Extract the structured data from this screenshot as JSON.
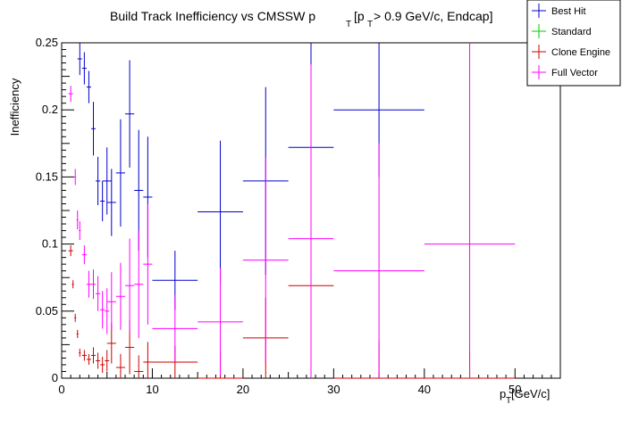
{
  "chart_data": {
    "type": "scatter",
    "title_main": "Build Track Inefficiency vs CMSSW p",
    "title_sub": "T",
    "title_bracket": "[p",
    "title_bracket_sub": "T",
    "title_tail": " > 0.9 GeV/c, Endcap]",
    "ylabel": "Inefficiency",
    "xlabel_main": "p",
    "xlabel_sub": "T",
    "xlabel_unit": " [GeV/c]",
    "xlim": [
      0,
      55
    ],
    "ylim": [
      0,
      0.25
    ],
    "x_ticks": [
      "0",
      "10",
      "20",
      "30",
      "40",
      "50"
    ],
    "y_ticks": [
      "0",
      "0.05",
      "0.1",
      "0.15",
      "0.2",
      "0.25"
    ],
    "x_tick_values": [
      0,
      10,
      20,
      30,
      40,
      50
    ],
    "y_tick_values": [
      0,
      0.05,
      0.1,
      0.15,
      0.2,
      0.25
    ],
    "legend": {
      "placement": "top-right",
      "entries": [
        {
          "label": "Best Hit",
          "color": "#0000cc"
        },
        {
          "label": "Standard",
          "color": "#00cc00"
        },
        {
          "label": "Clone Engine",
          "color": "#cc0000"
        },
        {
          "label": "Full Vector",
          "color": "#ff00ff"
        }
      ]
    },
    "series": [
      {
        "name": "Best Hit",
        "color": "#0000cc",
        "points": [
          {
            "x": 2.0,
            "xerr": 0.25,
            "y": 0.238,
            "yerr": 0.012
          },
          {
            "x": 2.5,
            "xerr": 0.25,
            "y": 0.231,
            "yerr": 0.012
          },
          {
            "x": 3.0,
            "xerr": 0.25,
            "y": 0.217,
            "yerr": 0.012
          },
          {
            "x": 3.5,
            "xerr": 0.25,
            "y": 0.186,
            "yerr": 0.02
          },
          {
            "x": 4.0,
            "xerr": 0.25,
            "y": 0.147,
            "yerr": 0.018
          },
          {
            "x": 4.5,
            "xerr": 0.25,
            "y": 0.132,
            "yerr": 0.015
          },
          {
            "x": 5.0,
            "xerr": 0.5,
            "y": 0.147,
            "yerr": 0.025
          },
          {
            "x": 5.5,
            "xerr": 0.5,
            "y": 0.131,
            "yerr": 0.025
          },
          {
            "x": 6.5,
            "xerr": 0.5,
            "y": 0.153,
            "yerr": 0.04
          },
          {
            "x": 7.5,
            "xerr": 0.5,
            "y": 0.197,
            "yerr": 0.04
          },
          {
            "x": 8.5,
            "xerr": 0.5,
            "y": 0.14,
            "yerr": 0.045
          },
          {
            "x": 9.5,
            "xerr": 0.5,
            "y": 0.135,
            "yerr": 0.045
          },
          {
            "x": 12.5,
            "xerr": 2.5,
            "y": 0.073,
            "yerr": 0.022
          },
          {
            "x": 17.5,
            "xerr": 2.5,
            "y": 0.124,
            "yerr": 0.053
          },
          {
            "x": 22.5,
            "xerr": 2.5,
            "y": 0.147,
            "yerr": 0.07
          },
          {
            "x": 27.5,
            "xerr": 2.5,
            "y": 0.172,
            "yerr": 0.078
          },
          {
            "x": 35.0,
            "xerr": 5.0,
            "y": 0.2,
            "yerr": 0.05
          }
        ]
      },
      {
        "name": "Clone Engine",
        "color": "#cc0000",
        "points": [
          {
            "x": 1.0,
            "xerr": 0.25,
            "y": 0.095,
            "yerr": 0.004
          },
          {
            "x": 1.25,
            "xerr": 0.1,
            "y": 0.07,
            "yerr": 0.003
          },
          {
            "x": 1.5,
            "xerr": 0.1,
            "y": 0.045,
            "yerr": 0.003
          },
          {
            "x": 1.75,
            "xerr": 0.1,
            "y": 0.033,
            "yerr": 0.003
          },
          {
            "x": 2.0,
            "xerr": 0.1,
            "y": 0.019,
            "yerr": 0.003
          },
          {
            "x": 2.5,
            "xerr": 0.25,
            "y": 0.017,
            "yerr": 0.004
          },
          {
            "x": 3.0,
            "xerr": 0.25,
            "y": 0.014,
            "yerr": 0.004
          },
          {
            "x": 3.5,
            "xerr": 0.25,
            "y": 0.017,
            "yerr": 0.006
          },
          {
            "x": 4.0,
            "xerr": 0.25,
            "y": 0.013,
            "yerr": 0.006
          },
          {
            "x": 4.5,
            "xerr": 0.25,
            "y": 0.01,
            "yerr": 0.006
          },
          {
            "x": 5.0,
            "xerr": 0.25,
            "y": 0.013,
            "yerr": 0.008
          },
          {
            "x": 5.5,
            "xerr": 0.5,
            "y": 0.026,
            "yerr": 0.015
          },
          {
            "x": 6.5,
            "xerr": 0.5,
            "y": 0.008,
            "yerr": 0.01
          },
          {
            "x": 7.5,
            "xerr": 0.5,
            "y": 0.023,
            "yerr": 0.02
          },
          {
            "x": 8.5,
            "xerr": 0.5,
            "y": 0.005,
            "yerr": 0.012
          },
          {
            "x": 9.5,
            "xerr": 0.5,
            "y": 0.012,
            "yerr": 0.015
          },
          {
            "x": 12.5,
            "xerr": 2.5,
            "y": 0.012,
            "yerr": 0.012
          },
          {
            "x": 17.5,
            "xerr": 2.5,
            "y": 0.0,
            "yerr": 0.02
          },
          {
            "x": 22.5,
            "xerr": 2.5,
            "y": 0.03,
            "yerr": 0.03
          },
          {
            "x": 27.5,
            "xerr": 2.5,
            "y": 0.069,
            "yerr": 0.046
          },
          {
            "x": 35.0,
            "xerr": 5.0,
            "y": 0.0,
            "yerr": 0.028
          },
          {
            "x": 45.0,
            "xerr": 5.0,
            "y": 0.0,
            "yerr": 0.02
          }
        ]
      },
      {
        "name": "Full Vector",
        "color": "#ff00ff",
        "points": [
          {
            "x": 1.0,
            "xerr": 0.25,
            "y": 0.212,
            "yerr": 0.006
          },
          {
            "x": 1.5,
            "xerr": 0.1,
            "y": 0.15,
            "yerr": 0.006
          },
          {
            "x": 1.75,
            "xerr": 0.1,
            "y": 0.118,
            "yerr": 0.007
          },
          {
            "x": 2.0,
            "xerr": 0.1,
            "y": 0.11,
            "yerr": 0.007
          },
          {
            "x": 2.5,
            "xerr": 0.25,
            "y": 0.092,
            "yerr": 0.007
          },
          {
            "x": 3.0,
            "xerr": 0.25,
            "y": 0.07,
            "yerr": 0.01
          },
          {
            "x": 3.5,
            "xerr": 0.25,
            "y": 0.07,
            "yerr": 0.011
          },
          {
            "x": 4.0,
            "xerr": 0.25,
            "y": 0.063,
            "yerr": 0.013
          },
          {
            "x": 4.5,
            "xerr": 0.25,
            "y": 0.051,
            "yerr": 0.014
          },
          {
            "x": 5.0,
            "xerr": 0.25,
            "y": 0.05,
            "yerr": 0.017
          },
          {
            "x": 5.5,
            "xerr": 0.5,
            "y": 0.057,
            "yerr": 0.022
          },
          {
            "x": 6.5,
            "xerr": 0.5,
            "y": 0.061,
            "yerr": 0.025
          },
          {
            "x": 7.5,
            "xerr": 0.5,
            "y": 0.069,
            "yerr": 0.035
          },
          {
            "x": 8.5,
            "xerr": 0.5,
            "y": 0.07,
            "yerr": 0.04
          },
          {
            "x": 9.5,
            "xerr": 0.5,
            "y": 0.085,
            "yerr": 0.045
          },
          {
            "x": 12.5,
            "xerr": 2.5,
            "y": 0.037,
            "yerr": 0.025
          },
          {
            "x": 17.5,
            "xerr": 2.5,
            "y": 0.042,
            "yerr": 0.04
          },
          {
            "x": 22.5,
            "xerr": 2.5,
            "y": 0.088,
            "yerr": 0.077
          },
          {
            "x": 27.5,
            "xerr": 2.5,
            "y": 0.104,
            "yerr": 0.13
          },
          {
            "x": 35.0,
            "xerr": 5.0,
            "y": 0.08,
            "yerr": 0.095
          },
          {
            "x": 45.0,
            "xerr": 5.0,
            "y": 0.1,
            "yerr": 0.2
          }
        ]
      }
    ]
  }
}
